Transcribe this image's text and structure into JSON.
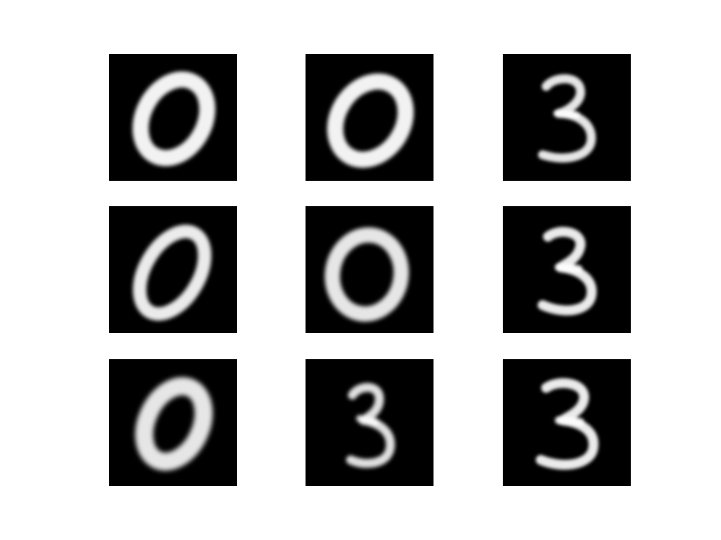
{
  "figure": {
    "rows": 3,
    "columns": 3,
    "background": "#ffffff",
    "tile_background": "#000000",
    "stroke_color": "#ffffff",
    "samples": [
      {
        "digit": "0"
      },
      {
        "digit": "0"
      },
      {
        "digit": "3"
      },
      {
        "digit": "0"
      },
      {
        "digit": "0"
      },
      {
        "digit": "3"
      },
      {
        "digit": "0"
      },
      {
        "digit": "3"
      },
      {
        "digit": "3"
      }
    ]
  }
}
